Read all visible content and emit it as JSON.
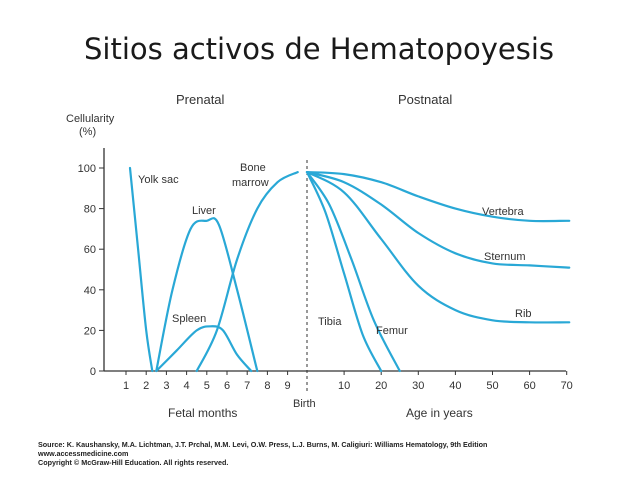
{
  "slide": {
    "title": "Sitios activos de Hematopoyesis"
  },
  "chart_data": {
    "type": "line",
    "ylabel": [
      "Cellularity",
      "(%)"
    ],
    "ylim": [
      0,
      100
    ],
    "yticks": [
      "0",
      "20",
      "40",
      "60",
      "80",
      "100"
    ],
    "period_labels": {
      "prenatal": "Prenatal",
      "postnatal": "Postnatal"
    },
    "birth_label": "Birth",
    "prenatal_xlabel": "Fetal months",
    "prenatal_xticks": [
      "1",
      "2",
      "3",
      "4",
      "5",
      "6",
      "7",
      "8",
      "9"
    ],
    "postnatal_xlabel": "Age in years",
    "postnatal_xticks": [
      "10",
      "20",
      "30",
      "40",
      "50",
      "60",
      "70"
    ],
    "line_color": "#29a8d6",
    "series": [
      {
        "name": "Yolk sac",
        "period": "prenatal",
        "x": [
          1.2,
          1.6,
          2.0,
          2.3
        ],
        "y": [
          100,
          60,
          20,
          0
        ]
      },
      {
        "name": "Liver",
        "period": "prenatal",
        "x": [
          2.5,
          3.3,
          4.2,
          5.0,
          5.6,
          6.5,
          7.5
        ],
        "y": [
          0,
          40,
          70,
          74,
          72,
          40,
          0
        ]
      },
      {
        "name": "Spleen",
        "period": "prenatal",
        "x": [
          2.5,
          3.5,
          4.5,
          5.2,
          5.8,
          6.5,
          7.2
        ],
        "y": [
          0,
          10,
          20,
          22,
          20,
          8,
          0
        ]
      },
      {
        "name": "Bone marrow",
        "period": "prenatal",
        "x": [
          4.5,
          5.5,
          6.5,
          7.5,
          8.5,
          9.5
        ],
        "y": [
          0,
          20,
          55,
          80,
          93,
          98
        ]
      },
      {
        "name": "Vertebra",
        "period": "postnatal",
        "x": [
          0,
          10,
          20,
          30,
          40,
          50,
          60,
          70
        ],
        "y": [
          98,
          97,
          93,
          86,
          80,
          76,
          74,
          74
        ]
      },
      {
        "name": "Sternum",
        "period": "postnatal",
        "x": [
          0,
          10,
          20,
          30,
          40,
          50,
          60,
          70
        ],
        "y": [
          98,
          93,
          82,
          68,
          58,
          53,
          52,
          51
        ]
      },
      {
        "name": "Rib",
        "period": "postnatal",
        "x": [
          0,
          10,
          20,
          30,
          40,
          50,
          60,
          70
        ],
        "y": [
          98,
          88,
          65,
          42,
          30,
          25,
          24,
          24
        ]
      },
      {
        "name": "Tibia",
        "period": "postnatal",
        "x": [
          0,
          5,
          10,
          15,
          20
        ],
        "y": [
          98,
          78,
          48,
          18,
          0
        ]
      },
      {
        "name": "Femur",
        "period": "postnatal",
        "x": [
          0,
          6,
          12,
          18,
          25
        ],
        "y": [
          98,
          82,
          55,
          25,
          0
        ]
      }
    ]
  },
  "source": {
    "line1": "Source: K. Kaushansky, M.A. Lichtman, J.T. Prchal, M.M. Levi, O.W. Press, L.J. Burns, M. Caligiuri: Williams Hematology, 9th Edition",
    "line2": "www.accessmedicine.com",
    "line3": "Copyright © McGraw-Hill Education.  All rights reserved."
  }
}
